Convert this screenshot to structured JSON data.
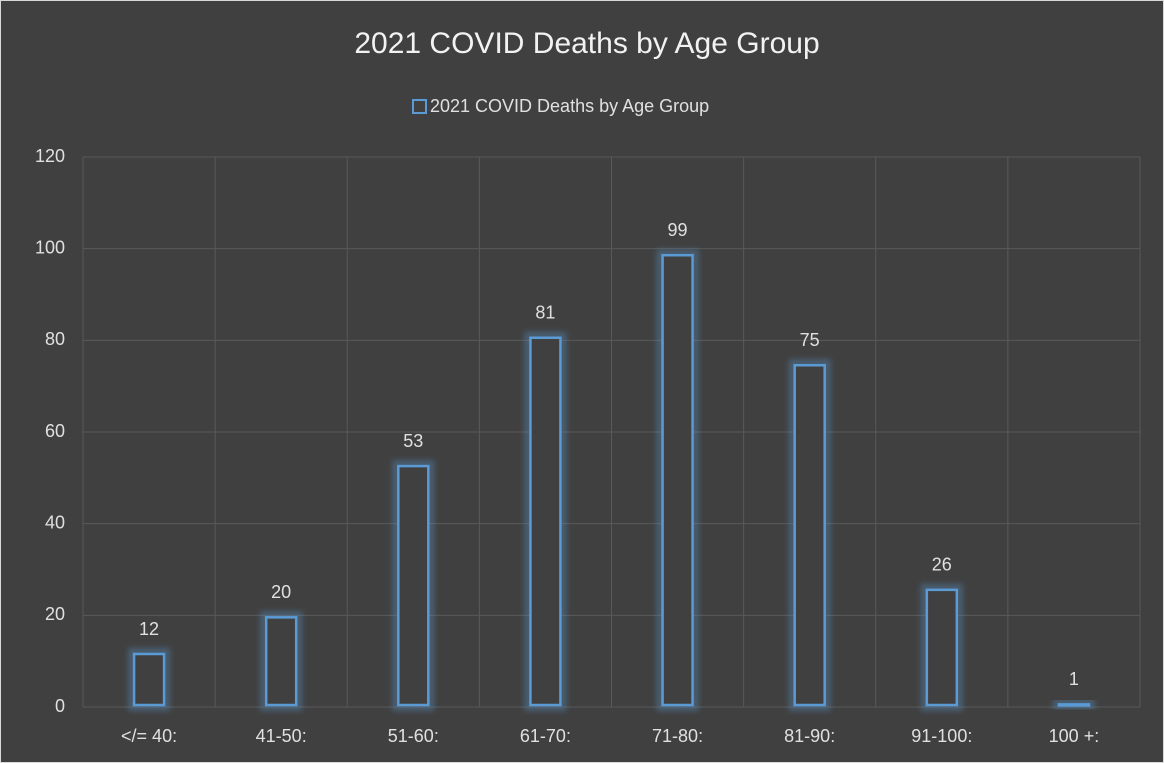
{
  "chart_data": {
    "type": "bar",
    "title": "2021 COVID Deaths by Age Group",
    "categories": [
      "</= 40:",
      "41-50:",
      "51-60:",
      "61-70:",
      "71-80:",
      "81-90:",
      "91-100:",
      "100 +:"
    ],
    "series": [
      {
        "name": "2021 COVID Deaths by Age Group",
        "color": "#5b9bd5",
        "values": [
          12,
          20,
          53,
          81,
          99,
          75,
          26,
          1
        ]
      }
    ],
    "ylim": [
      0,
      120
    ],
    "yticks": [
      0,
      20,
      40,
      60,
      80,
      100,
      120
    ],
    "grid": true,
    "legend": "top"
  }
}
